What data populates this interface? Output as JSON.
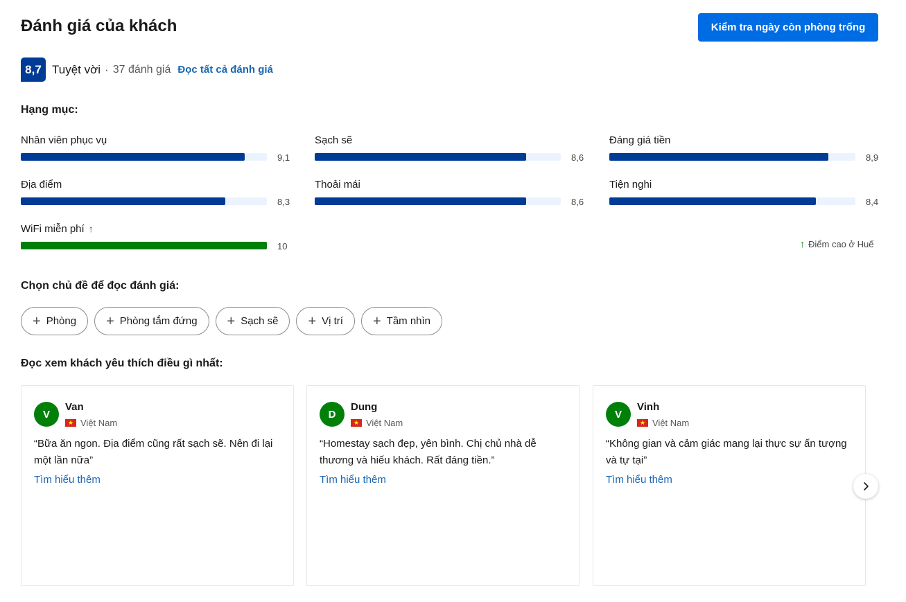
{
  "header": {
    "title": "Đánh giá của khách",
    "check_button": "Kiểm tra ngày còn phòng trống"
  },
  "score": {
    "value": "8,7",
    "word": "Tuyệt vời",
    "separator": "·",
    "count": "37 đánh giá",
    "read_all": "Đọc tất cả đánh giá"
  },
  "categories": {
    "heading": "Hạng mục:",
    "items": [
      {
        "label": "Nhân viên phục vụ",
        "value": "9,1",
        "score": 9.1
      },
      {
        "label": "Sạch sẽ",
        "value": "8,6",
        "score": 8.6
      },
      {
        "label": "Đáng giá tiền",
        "value": "8,9",
        "score": 8.9
      },
      {
        "label": "Địa điểm",
        "value": "8,3",
        "score": 8.3
      },
      {
        "label": "Thoải mái",
        "value": "8,6",
        "score": 8.6
      },
      {
        "label": "Tiện nghi",
        "value": "8,4",
        "score": 8.4
      },
      {
        "label": "WiFi miễn phí",
        "value": "10",
        "score": 10,
        "high": true
      }
    ],
    "high_note": "Điểm cao ở Huế",
    "up_arrow": "↑"
  },
  "topics": {
    "heading": "Chọn chủ đề để đọc đánh giá:",
    "chips": [
      "Phòng",
      "Phòng tắm đứng",
      "Sạch sẽ",
      "Vị trí",
      "Tầm nhìn"
    ]
  },
  "reviews": {
    "heading": "Đọc xem khách yêu thích điều gì nhất:",
    "more_label": "Tìm hiểu thêm",
    "items": [
      {
        "initial": "V",
        "name": "Van",
        "country": "Việt Nam",
        "text": "“Bữa ăn ngon. Địa điểm cũng rất sạch sẽ. Nên đi lại một lần nữa”"
      },
      {
        "initial": "D",
        "name": "Dung",
        "country": "Việt Nam",
        "text": "“Homestay sạch đẹp, yên bình. Chị chủ nhà dễ thương và hiếu khách. Rất đáng tiền.”"
      },
      {
        "initial": "V",
        "name": "Vinh",
        "country": "Việt Nam",
        "text": "“Không gian và cảm giác mang lại thực sự ấn tượng và tự tại”"
      }
    ]
  },
  "colors": {
    "primary": "#006ce4",
    "badge": "#003b95",
    "bar": "#003b95",
    "bar_track": "#ebf3ff",
    "high_bar": "#008009",
    "link": "#1a66b3"
  }
}
